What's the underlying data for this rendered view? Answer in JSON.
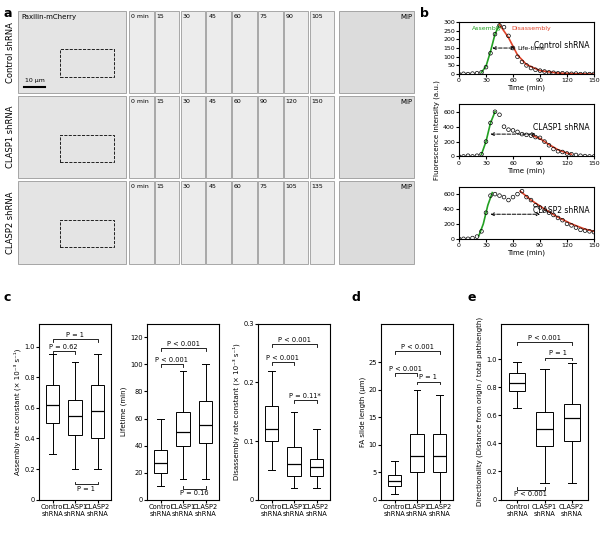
{
  "image_panel": {
    "panel": "a",
    "stain": "Paxilin-mCherry",
    "scale_bar": "10 μm",
    "projection": "MIP",
    "rows": [
      {
        "name": "Control shRNA",
        "times": [
          "0 min",
          "15",
          "30",
          "45",
          "60",
          "75",
          "90",
          "105"
        ]
      },
      {
        "name": "CLASP1 shRNA",
        "times": [
          "0 min",
          "15",
          "30",
          "45",
          "60",
          "90",
          "120",
          "150"
        ]
      },
      {
        "name": "CLASP2 shRNA",
        "times": [
          "0 min",
          "15",
          "30",
          "45",
          "60",
          "75",
          "105",
          "135"
        ]
      }
    ]
  },
  "chart_data": [
    {
      "type": "line",
      "panel": "b",
      "title": "Control shRNA",
      "xlabel": "Time (min)",
      "xlim": [
        0,
        150
      ],
      "xticks": [
        0,
        30,
        60,
        90,
        120,
        150
      ],
      "ylim": [
        0,
        300
      ],
      "yticks": [
        0,
        50,
        100,
        150,
        200,
        250,
        300
      ],
      "series": [
        {
          "type": "scatter",
          "marker": "o",
          "color": "#000000",
          "x": [
            0,
            5,
            10,
            15,
            20,
            25,
            30,
            35,
            40,
            45,
            50,
            55,
            60,
            65,
            70,
            75,
            80,
            85,
            90,
            95,
            100,
            105,
            110,
            115,
            120,
            125,
            130,
            135,
            140,
            145,
            150
          ],
          "values": [
            0,
            2,
            0,
            3,
            5,
            10,
            40,
            120,
            230,
            280,
            270,
            220,
            150,
            100,
            70,
            50,
            35,
            25,
            20,
            15,
            10,
            8,
            5,
            5,
            3,
            2,
            3,
            0,
            2,
            0,
            1
          ]
        },
        {
          "type": "line",
          "color": "#22a022",
          "x": [
            25,
            30,
            35,
            40,
            45
          ],
          "values": [
            10,
            45,
            130,
            230,
            285
          ]
        },
        {
          "type": "line",
          "color": "#e0442a",
          "x": [
            45,
            55,
            65,
            75,
            90,
            110,
            130,
            150
          ],
          "values": [
            285,
            210,
            110,
            55,
            20,
            6,
            2,
            0
          ]
        }
      ],
      "annotations": [
        {
          "text": "Assembly",
          "x": 14,
          "y": 265,
          "color": "#22a022"
        },
        {
          "text": "Disassembly",
          "x": 58,
          "y": 265,
          "color": "#e0442a"
        }
      ],
      "lifetime_arrow": {
        "x": [
          37,
          62
        ],
        "y": 150,
        "text": "Life-time"
      }
    },
    {
      "type": "line",
      "title": "CLASP1 shRNA",
      "xlabel": "Time (min)",
      "ylabel": "Fluorescence intensity (a.u.)",
      "xlim": [
        0,
        150
      ],
      "xticks": [
        0,
        30,
        60,
        90,
        120,
        150
      ],
      "ylim": [
        0,
        700
      ],
      "yticks": [
        0,
        200,
        400,
        600
      ],
      "series": [
        {
          "type": "scatter",
          "marker": "o",
          "color": "#000000",
          "x": [
            0,
            5,
            10,
            15,
            20,
            25,
            30,
            35,
            40,
            45,
            50,
            55,
            60,
            65,
            70,
            75,
            80,
            85,
            90,
            95,
            100,
            105,
            110,
            115,
            120,
            125,
            130,
            135,
            140,
            145,
            150
          ],
          "values": [
            0,
            0,
            10,
            0,
            10,
            30,
            200,
            450,
            600,
            560,
            400,
            360,
            350,
            330,
            300,
            290,
            280,
            260,
            250,
            200,
            150,
            100,
            70,
            60,
            40,
            30,
            20,
            10,
            5,
            0,
            0
          ]
        },
        {
          "type": "line",
          "color": "#22a022",
          "x": [
            25,
            30,
            35,
            40
          ],
          "values": [
            30,
            200,
            450,
            600
          ]
        },
        {
          "type": "line",
          "color": "#e0442a",
          "x": [
            82,
            90,
            100,
            110,
            120,
            125
          ],
          "values": [
            280,
            240,
            160,
            90,
            45,
            30
          ]
        }
      ],
      "lifetime_arrow": {
        "x": [
          35,
          85
        ],
        "y": 300
      }
    },
    {
      "type": "line",
      "title": "CLASP2 shRNA",
      "xlabel": "Time (min)",
      "xlim": [
        0,
        150
      ],
      "xticks": [
        0,
        30,
        60,
        90,
        120,
        150
      ],
      "ylim": [
        0,
        700
      ],
      "yticks": [
        0,
        200,
        400,
        600
      ],
      "series": [
        {
          "type": "scatter",
          "marker": "o",
          "color": "#000000",
          "x": [
            0,
            5,
            10,
            15,
            20,
            25,
            30,
            35,
            40,
            45,
            50,
            55,
            60,
            65,
            70,
            75,
            80,
            85,
            90,
            95,
            100,
            105,
            110,
            115,
            120,
            125,
            130,
            135,
            140,
            145,
            150
          ],
          "values": [
            0,
            0,
            0,
            10,
            30,
            100,
            350,
            580,
            600,
            580,
            560,
            520,
            560,
            600,
            640,
            560,
            520,
            450,
            420,
            380,
            350,
            320,
            280,
            250,
            200,
            180,
            150,
            120,
            110,
            100,
            90
          ]
        },
        {
          "type": "line",
          "color": "#22a022",
          "x": [
            22,
            27,
            32,
            37
          ],
          "values": [
            40,
            200,
            450,
            620
          ]
        },
        {
          "type": "line",
          "color": "#e0442a",
          "x": [
            68,
            80,
            95,
            110,
            125,
            140,
            150
          ],
          "values": [
            640,
            520,
            400,
            290,
            200,
            130,
            100
          ]
        }
      ],
      "lifetime_arrow": {
        "x": [
          35,
          90
        ],
        "y": 330
      }
    },
    {
      "type": "box",
      "panel": "c",
      "ylabel": "Assembly rate constant (× 10⁻³ s⁻¹)",
      "categories": [
        "Control\nshRNA",
        "CLASP1\nshRNA",
        "CLASP2\nshRNA"
      ],
      "ylim": [
        0,
        1.15
      ],
      "yticks": [
        0,
        0.2,
        0.4,
        0.6,
        0.8,
        1.0
      ],
      "boxes": [
        {
          "whisker_low": 0.3,
          "q1": 0.5,
          "median": 0.62,
          "q3": 0.75,
          "whisker_high": 0.95
        },
        {
          "whisker_low": 0.2,
          "q1": 0.42,
          "median": 0.55,
          "q3": 0.65,
          "whisker_high": 0.9
        },
        {
          "whisker_low": 0.2,
          "q1": 0.4,
          "median": 0.58,
          "q3": 0.75,
          "whisker_high": 0.95
        }
      ],
      "comparisons": [
        {
          "between": [
            0,
            1
          ],
          "y": 0.97,
          "text": "P = 0.62"
        },
        {
          "between": [
            0,
            2
          ],
          "y": 1.05,
          "text": "P = 1"
        },
        {
          "between": [
            1,
            2
          ],
          "y": 0.1,
          "text": "P = 1"
        }
      ]
    },
    {
      "type": "box",
      "ylabel": "Lifetime (min)",
      "categories": [
        "Control\nshRNA",
        "CLASP1\nshRNA",
        "CLASP2\nshRNA"
      ],
      "ylim": [
        0,
        130
      ],
      "yticks": [
        0,
        20,
        40,
        60,
        80,
        100,
        120
      ],
      "boxes": [
        {
          "whisker_low": 10,
          "q1": 20,
          "median": 27,
          "q3": 37,
          "whisker_high": 60
        },
        {
          "whisker_low": 15,
          "q1": 40,
          "median": 50,
          "q3": 65,
          "whisker_high": 95
        },
        {
          "whisker_low": 15,
          "q1": 42,
          "median": 55,
          "q3": 73,
          "whisker_high": 100
        }
      ],
      "comparisons": [
        {
          "between": [
            0,
            1
          ],
          "y": 100,
          "text": "P < 0.001"
        },
        {
          "between": [
            0,
            2
          ],
          "y": 112,
          "text": "P < 0.001"
        },
        {
          "between": [
            1,
            2
          ],
          "y": 8,
          "text": "P = 0.16"
        }
      ]
    },
    {
      "type": "box",
      "ylabel": "Disassembly rate constant (× 10⁻³ s⁻¹)",
      "categories": [
        "Control\nshRNA",
        "CLASP1\nshRNA",
        "CLASP2\nshRNA"
      ],
      "ylim": [
        0,
        0.3
      ],
      "yticks": [
        0,
        0.1,
        0.2,
        0.3
      ],
      "boxes": [
        {
          "whisker_low": 0.05,
          "q1": 0.1,
          "median": 0.12,
          "q3": 0.16,
          "whisker_high": 0.22
        },
        {
          "whisker_low": 0.02,
          "q1": 0.04,
          "median": 0.06,
          "q3": 0.09,
          "whisker_high": 0.15
        },
        {
          "whisker_low": 0.02,
          "q1": 0.04,
          "median": 0.055,
          "q3": 0.07,
          "whisker_high": 0.12
        }
      ],
      "comparisons": [
        {
          "between": [
            0,
            1
          ],
          "y": 0.235,
          "text": "P < 0.001"
        },
        {
          "between": [
            0,
            2
          ],
          "y": 0.265,
          "text": "P < 0.001"
        },
        {
          "between": [
            1,
            2
          ],
          "y": 0.17,
          "text": "P = 0.11*"
        }
      ]
    },
    {
      "type": "box",
      "panel": "d",
      "ylabel": "FA slide length (μm)",
      "categories": [
        "Control\nshRNA",
        "CLASP1\nshRNA",
        "CLASP2\nshRNA"
      ],
      "ylim": [
        0,
        32
      ],
      "yticks": [
        0,
        5,
        10,
        15,
        20,
        25
      ],
      "boxes": [
        {
          "whisker_low": 1,
          "q1": 2.5,
          "median": 3.3,
          "q3": 4.5,
          "whisker_high": 7
        },
        {
          "whisker_low": 0,
          "q1": 5,
          "median": 8,
          "q3": 12,
          "whisker_high": 20
        },
        {
          "whisker_low": 0,
          "q1": 5,
          "median": 8,
          "q3": 12,
          "whisker_high": 19
        }
      ],
      "comparisons": [
        {
          "between": [
            0,
            1
          ],
          "y": 23,
          "text": "P < 0.001"
        },
        {
          "between": [
            0,
            2
          ],
          "y": 27,
          "text": "P < 0.001"
        },
        {
          "between": [
            1,
            2
          ],
          "y": 21.5,
          "text": "P = 1"
        }
      ]
    },
    {
      "type": "box",
      "panel": "e",
      "ylabel": "Directionality (Distance from origin / total pathlength)",
      "categories": [
        "Control\nshRNA",
        "CLASP1\nshRNA",
        "CLASP2\nshRNA"
      ],
      "ylim": [
        0,
        1.25
      ],
      "yticks": [
        0,
        0.2,
        0.4,
        0.6,
        0.8,
        1.0
      ],
      "boxes": [
        {
          "whisker_low": 0.65,
          "q1": 0.77,
          "median": 0.83,
          "q3": 0.9,
          "whisker_high": 0.98
        },
        {
          "whisker_low": 0.12,
          "q1": 0.38,
          "median": 0.5,
          "q3": 0.62,
          "whisker_high": 0.93
        },
        {
          "whisker_low": 0.12,
          "q1": 0.42,
          "median": 0.58,
          "q3": 0.68,
          "whisker_high": 0.97
        }
      ],
      "comparisons": [
        {
          "between": [
            0,
            2
          ],
          "y": 1.12,
          "text": "P < 0.001"
        },
        {
          "between": [
            1,
            2
          ],
          "y": 1.01,
          "text": "P = 1"
        },
        {
          "between": [
            0,
            1
          ],
          "y": 0.07,
          "text": "P < 0.001"
        }
      ]
    }
  ]
}
